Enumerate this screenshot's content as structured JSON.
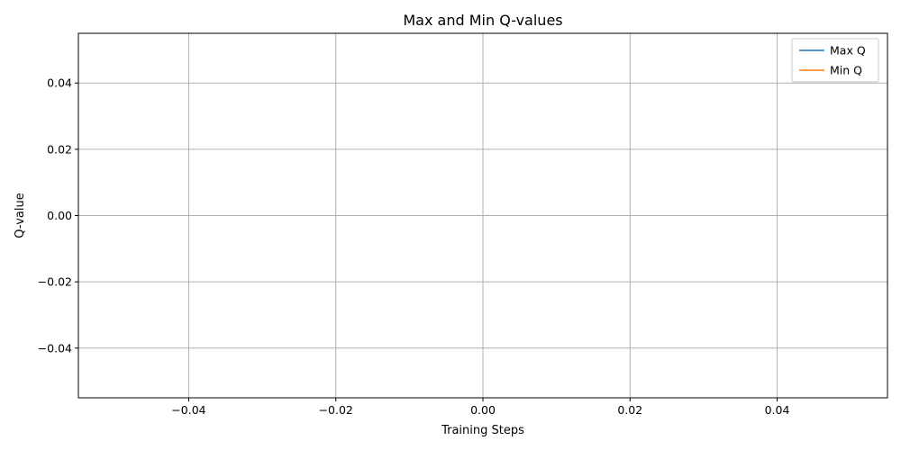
{
  "chart_data": {
    "type": "line",
    "title": "Max and Min Q-values",
    "xlabel": "Training Steps",
    "ylabel": "Q-value",
    "xlim": [
      -0.055,
      0.055
    ],
    "ylim": [
      -0.055,
      0.055
    ],
    "x_ticks": [
      -0.04,
      -0.02,
      0.0,
      0.02,
      0.04
    ],
    "y_ticks": [
      -0.04,
      -0.02,
      0.0,
      0.02,
      0.04
    ],
    "x_tick_labels": [
      "−0.04",
      "−0.02",
      "0.00",
      "0.02",
      "0.04"
    ],
    "y_tick_labels": [
      "−0.04",
      "−0.02",
      "0.00",
      "0.02",
      "0.04"
    ],
    "grid": true,
    "legend_position": "top-right",
    "series": [
      {
        "name": "Max Q",
        "color": "#1f77b4",
        "x": [],
        "y": []
      },
      {
        "name": "Min Q",
        "color": "#ff7f0e",
        "x": [],
        "y": []
      }
    ]
  }
}
